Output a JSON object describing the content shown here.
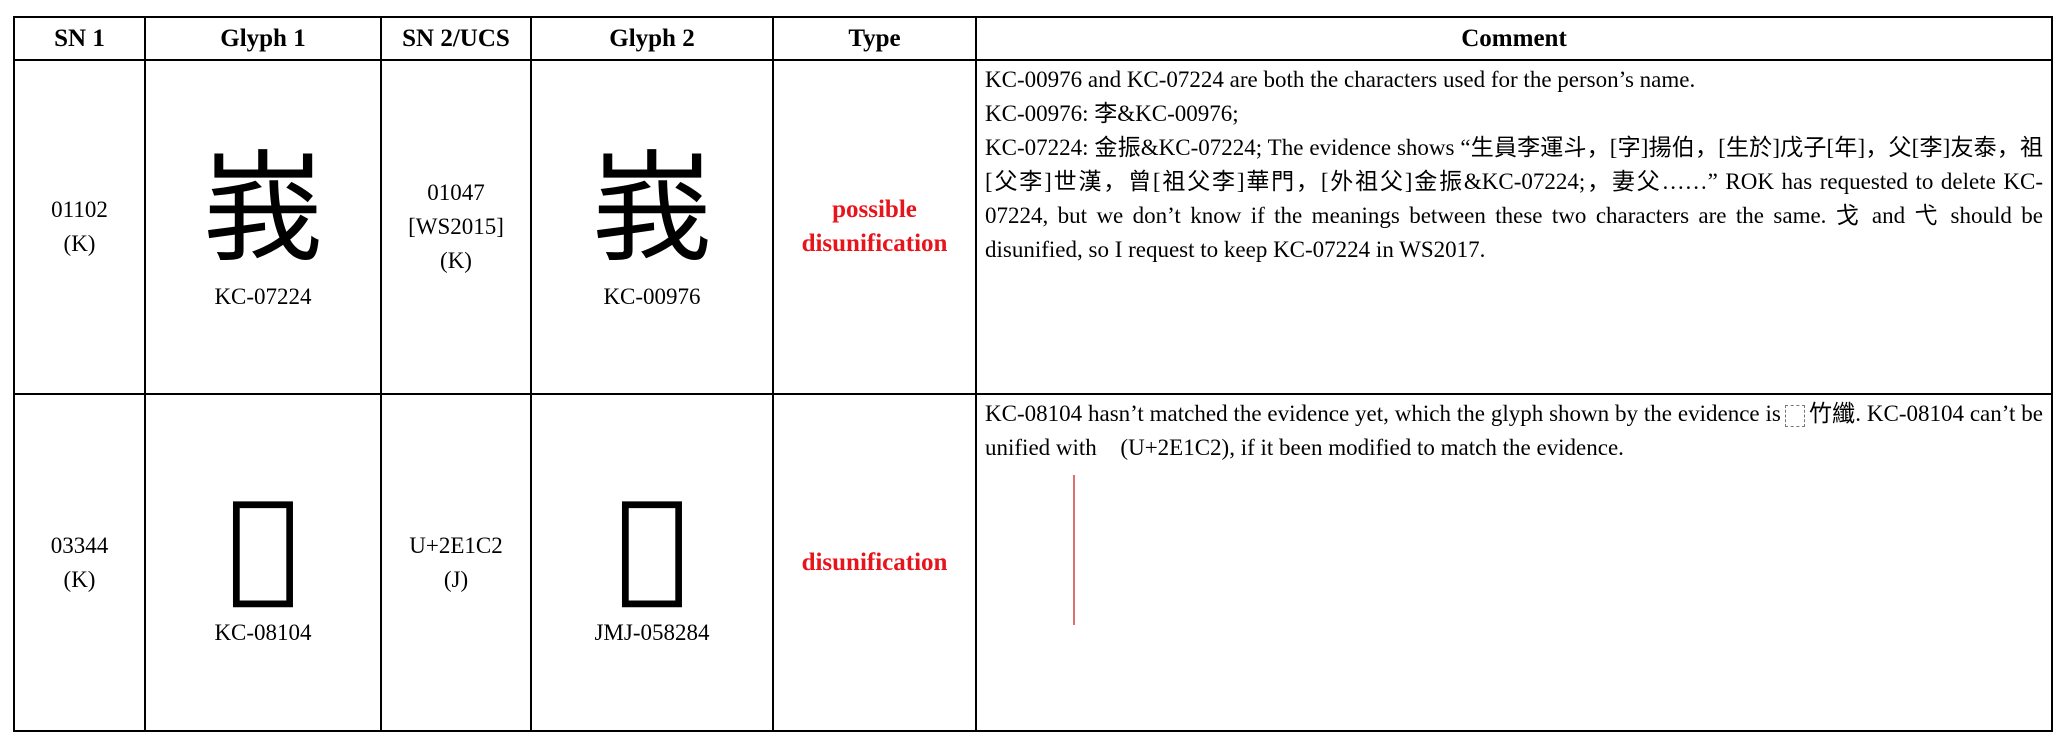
{
  "table": {
    "headers": [
      "SN 1",
      "Glyph 1",
      "SN 2/UCS",
      "Glyph 2",
      "Type",
      "Comment"
    ],
    "rows": [
      {
        "sn1": "01102",
        "sn1_source": "(K)",
        "glyph1": "峩",
        "glyph1_id": "KC-07224",
        "sn2": [
          "01047",
          "[WS2015]",
          "(K)"
        ],
        "glyph2": "峩",
        "glyph2_id": "KC-00976",
        "type": [
          "possible",
          "disunification"
        ],
        "comment": [
          "KC-00976 and KC-07224 are both the characters used for the person’s name.",
          "KC-00976: 李&KC-00976;",
          "KC-07224: 金振&KC-07224; The evidence shows “生員李運斗，[字]揚伯，[生於]戊子[年]，父[李]友泰，祖[父李]世漢，曾[祖父李]華門，[外祖父]金振&KC-07224;，妻父……” ROK has requested to delete KC-07224, but we don’t know if the meanings between these two characters are the same. 戈 and 弋 should be disunified, so I request to keep KC-07224 in WS2017."
        ]
      },
      {
        "sn1": "03344",
        "sn1_source": "(K)",
        "glyph1": "𮇂",
        "glyph1_id": "KC-08104",
        "sn2": [
          "U+2E1C2",
          "(J)"
        ],
        "glyph2": "𮇂",
        "glyph2_id": "JMJ-058284",
        "type": [
          "disunification"
        ],
        "comment": [
          "KC-08104 hasn’t matched the evidence yet, which the glyph shown by the evidence is",
          "竹纖. KC-08104 can’t be unified with 𮇂(U+2E1C2), if it been modified to match the evidence."
        ],
        "evidence": "𮇂"
      }
    ]
  }
}
